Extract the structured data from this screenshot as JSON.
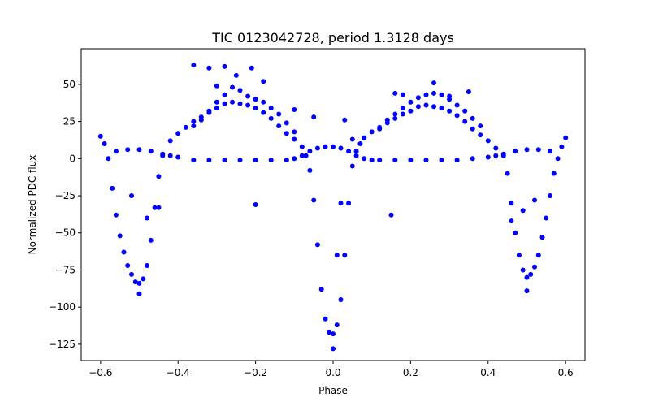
{
  "chart_data": {
    "type": "scatter",
    "title": "TIC 0123042728, period 1.3128 days",
    "xlabel": "Phase",
    "ylabel": "Normalized PDC flux",
    "xlim": [
      -0.65,
      0.65
    ],
    "ylim": [
      -136,
      74
    ],
    "xticks": [
      -0.6,
      -0.4,
      -0.2,
      0.0,
      0.2,
      0.4,
      0.6
    ],
    "xtick_labels": [
      "−0.6",
      "−0.4",
      "−0.2",
      "0.0",
      "0.2",
      "0.4",
      "0.6"
    ],
    "yticks": [
      50,
      25,
      0,
      -25,
      -50,
      -75,
      -100,
      -125
    ],
    "ytick_labels": [
      "50",
      "25",
      "0",
      "−25",
      "−50",
      "−75",
      "−100",
      "−125"
    ],
    "grid": false,
    "marker_color": "#0000ff",
    "series": [
      {
        "x": [
          -0.6,
          -0.59,
          -0.58,
          -0.57,
          -0.56,
          -0.55,
          -0.54,
          -0.53,
          -0.52,
          -0.51,
          -0.5,
          -0.49,
          -0.48,
          -0.47,
          -0.46,
          -0.45,
          -0.44,
          -0.42,
          -0.4,
          -0.38,
          -0.36,
          -0.34,
          -0.32,
          -0.3,
          -0.28,
          -0.26,
          -0.24,
          -0.22,
          -0.2,
          -0.18,
          -0.16,
          -0.14,
          -0.12,
          -0.1,
          -0.08,
          -0.07,
          -0.06,
          -0.05,
          -0.04,
          -0.03,
          -0.02,
          -0.01,
          0.0,
          0.01,
          0.02,
          0.03,
          0.04,
          0.05,
          0.06,
          0.07,
          0.08,
          0.1,
          0.12,
          0.14,
          0.16,
          0.18,
          0.2,
          0.22,
          0.24,
          0.26,
          0.28,
          0.3,
          0.32,
          0.34,
          0.36,
          0.38,
          0.4,
          0.42,
          0.44,
          0.45,
          0.46,
          0.47,
          0.48,
          0.49,
          0.5,
          0.51,
          0.52,
          0.53,
          0.54,
          0.55,
          0.56,
          0.57,
          0.58,
          0.59,
          0.6
        ],
        "y": [
          15,
          10,
          0,
          -20,
          -38,
          -52,
          -63,
          -72,
          -78,
          -83,
          -84,
          -81,
          -72,
          -55,
          -33,
          -12,
          2,
          12,
          17,
          21,
          25,
          28,
          31,
          34,
          37,
          38,
          37,
          36,
          34,
          31,
          27,
          22,
          17,
          13,
          8,
          2,
          -8,
          -28,
          -58,
          -88,
          -108,
          -117,
          -118,
          -112,
          -95,
          -65,
          -30,
          -5,
          5,
          10,
          14,
          18,
          21,
          24,
          27,
          30,
          32,
          35,
          36,
          35,
          34,
          32,
          29,
          25,
          20,
          16,
          12,
          7,
          2,
          -10,
          -30,
          -50,
          -65,
          -75,
          -80,
          -78,
          -73,
          -65,
          -53,
          -40,
          -25,
          -10,
          0,
          8,
          14
        ]
      },
      {
        "x": [
          -0.56,
          -0.53,
          -0.5,
          -0.47,
          -0.44,
          -0.42,
          -0.4,
          -0.36,
          -0.32,
          -0.28,
          -0.24,
          -0.2,
          -0.16,
          -0.12,
          -0.1,
          -0.08,
          -0.06,
          -0.04,
          -0.02,
          0.0,
          0.02,
          0.04,
          0.06,
          0.08,
          0.1,
          0.12,
          0.16,
          0.2,
          0.24,
          0.28,
          0.32,
          0.36,
          0.4,
          0.42,
          0.44,
          0.47,
          0.5,
          0.53,
          0.56
        ],
        "y": [
          5,
          6,
          6,
          5,
          3,
          2,
          1,
          -1,
          -1,
          -1,
          -1,
          -1,
          -1,
          -1,
          0,
          2,
          5,
          7,
          8,
          8,
          7,
          5,
          2,
          0,
          -1,
          -1,
          -1,
          -1,
          -1,
          -1,
          -1,
          0,
          1,
          2,
          3,
          5,
          6,
          6,
          5
        ]
      },
      {
        "x": [
          -0.36,
          -0.34,
          -0.32,
          -0.3,
          -0.28,
          -0.26,
          -0.24,
          -0.22,
          -0.2,
          -0.18,
          -0.16,
          -0.14,
          -0.12,
          -0.1,
          0.12,
          0.14,
          0.16,
          0.18,
          0.2,
          0.22,
          0.24,
          0.26,
          0.28,
          0.3,
          0.32,
          0.34,
          0.36,
          0.38
        ],
        "y": [
          22,
          26,
          32,
          38,
          43,
          48,
          46,
          42,
          40,
          38,
          34,
          30,
          24,
          18,
          20,
          26,
          30,
          34,
          38,
          41,
          43,
          44,
          43,
          40,
          36,
          32,
          27,
          22
        ]
      },
      {
        "x": [
          -0.36,
          -0.32,
          -0.28,
          -0.25,
          -0.21,
          -0.18,
          -0.3,
          -0.1,
          -0.05,
          0.03,
          0.05,
          0.08,
          0.16,
          0.18,
          0.26,
          0.3,
          0.35,
          -0.2,
          0.15,
          -0.48,
          -0.45,
          0.46,
          0.49,
          -0.52,
          0.52,
          0.01,
          0.0,
          -0.5,
          0.5,
          0.02
        ],
        "y": [
          63,
          61,
          62,
          56,
          61,
          52,
          49,
          33,
          28,
          26,
          13,
          14,
          44,
          43,
          51,
          42,
          45,
          -31,
          -38,
          -40,
          -33,
          -42,
          -35,
          -25,
          -28,
          -65,
          -128,
          -91,
          -89,
          -30
        ]
      }
    ]
  }
}
